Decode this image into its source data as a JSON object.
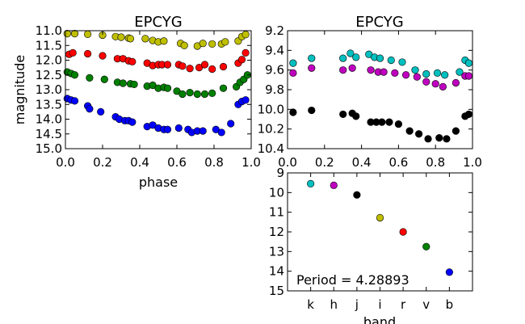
{
  "colors": {
    "b": "#0000ff",
    "v": "#008000",
    "r": "#ff0000",
    "i": "#bfbf00",
    "j": "#000000",
    "h": "#bf00bf",
    "k": "#00bfbf"
  },
  "chart_data": [
    {
      "id": "left",
      "type": "scatter",
      "title": "EPCYG",
      "xlabel": "phase",
      "ylabel": "magnitude",
      "xlim": [
        0.0,
        1.0
      ],
      "ylim": [
        15.0,
        11.0
      ],
      "y_inverted": true,
      "xticks": [
        "0.0",
        "0.2",
        "0.4",
        "0.6",
        "0.8",
        "1.0"
      ],
      "yticks": [
        "11.0",
        "11.5",
        "12.0",
        "12.5",
        "13.0",
        "13.5",
        "14.0",
        "14.5",
        "15.0"
      ],
      "series": [
        {
          "band": "i",
          "color": "#bfbf00",
          "x": [
            0.01,
            0.05,
            0.12,
            0.2,
            0.27,
            0.3,
            0.34,
            0.35,
            0.43,
            0.47,
            0.5,
            0.53,
            0.62,
            0.64,
            0.71,
            0.74,
            0.79,
            0.84,
            0.86,
            0.93,
            0.95,
            0.97
          ],
          "y": [
            11.1,
            11.1,
            11.12,
            11.15,
            11.2,
            11.22,
            11.25,
            11.27,
            11.27,
            11.33,
            11.38,
            11.35,
            11.43,
            11.5,
            11.52,
            11.43,
            11.45,
            11.45,
            11.38,
            11.35,
            11.2,
            11.13
          ]
        },
        {
          "band": "r",
          "color": "#ff0000",
          "x": [
            0.02,
            0.04,
            0.12,
            0.2,
            0.28,
            0.31,
            0.34,
            0.36,
            0.44,
            0.47,
            0.5,
            0.52,
            0.55,
            0.61,
            0.63,
            0.67,
            0.72,
            0.75,
            0.79,
            0.85,
            0.93,
            0.95,
            0.97
          ],
          "y": [
            11.8,
            11.75,
            11.78,
            11.85,
            11.95,
            11.95,
            12.02,
            12.05,
            12.1,
            12.18,
            12.15,
            12.15,
            12.15,
            12.15,
            12.2,
            12.28,
            12.25,
            12.15,
            12.3,
            12.22,
            12.1,
            11.98,
            11.75
          ]
        },
        {
          "band": "v",
          "color": "#008000",
          "x": [
            0.01,
            0.03,
            0.05,
            0.13,
            0.21,
            0.28,
            0.31,
            0.35,
            0.37,
            0.44,
            0.47,
            0.5,
            0.53,
            0.55,
            0.6,
            0.63,
            0.67,
            0.71,
            0.75,
            0.79,
            0.85,
            0.92,
            0.94,
            0.96,
            0.98
          ],
          "y": [
            12.4,
            12.45,
            12.5,
            12.6,
            12.65,
            12.75,
            12.78,
            12.8,
            12.82,
            12.88,
            12.85,
            12.95,
            12.92,
            12.95,
            13.05,
            13.15,
            13.1,
            13.15,
            13.15,
            13.12,
            12.95,
            12.9,
            12.75,
            12.65,
            12.5
          ]
        },
        {
          "band": "b",
          "color": "#0000ff",
          "x": [
            0.01,
            0.03,
            0.05,
            0.12,
            0.13,
            0.19,
            0.27,
            0.29,
            0.32,
            0.34,
            0.36,
            0.44,
            0.47,
            0.5,
            0.53,
            0.55,
            0.61,
            0.66,
            0.68,
            0.71,
            0.74,
            0.81,
            0.84,
            0.89,
            0.93,
            0.95,
            0.97
          ],
          "y": [
            13.3,
            13.35,
            13.38,
            13.55,
            13.65,
            13.75,
            13.92,
            14.0,
            14.05,
            14.05,
            14.1,
            14.25,
            14.2,
            14.3,
            14.35,
            14.35,
            14.3,
            14.35,
            14.45,
            14.4,
            14.4,
            14.35,
            14.45,
            14.15,
            13.5,
            13.4,
            13.35
          ]
        }
      ]
    },
    {
      "id": "right-top",
      "type": "scatter",
      "title": "EPCYG",
      "xlabel": "",
      "ylabel": "",
      "xlim": [
        0.0,
        1.0
      ],
      "ylim": [
        10.4,
        9.2
      ],
      "y_inverted": true,
      "xticks": [
        "0.0",
        "0.2",
        "0.4",
        "0.6",
        "0.8",
        "1.0"
      ],
      "yticks": [
        "9.2",
        "9.4",
        "9.6",
        "9.8",
        "10.0",
        "10.2",
        "10.4"
      ],
      "series": [
        {
          "band": "k",
          "color": "#00bfbf",
          "x": [
            0.03,
            0.13,
            0.3,
            0.34,
            0.37,
            0.44,
            0.47,
            0.5,
            0.56,
            0.62,
            0.69,
            0.75,
            0.81,
            0.85,
            0.93,
            0.96,
            0.98
          ],
          "y": [
            9.53,
            9.48,
            9.48,
            9.43,
            9.47,
            9.44,
            9.47,
            9.48,
            9.5,
            9.52,
            9.6,
            9.64,
            9.63,
            9.65,
            9.62,
            9.5,
            9.53
          ]
        },
        {
          "band": "h",
          "color": "#bf00bf",
          "x": [
            0.03,
            0.13,
            0.3,
            0.35,
            0.45,
            0.49,
            0.52,
            0.58,
            0.64,
            0.7,
            0.75,
            0.8,
            0.84,
            0.91,
            0.96,
            0.98
          ],
          "y": [
            9.63,
            9.58,
            9.6,
            9.58,
            9.6,
            9.62,
            9.62,
            9.63,
            9.65,
            9.67,
            9.72,
            9.74,
            9.77,
            9.73,
            9.66,
            9.66
          ]
        },
        {
          "band": "j",
          "color": "#000000",
          "x": [
            0.03,
            0.13,
            0.3,
            0.35,
            0.37,
            0.45,
            0.48,
            0.51,
            0.55,
            0.6,
            0.66,
            0.71,
            0.76,
            0.82,
            0.86,
            0.91,
            0.96,
            0.98
          ],
          "y": [
            10.03,
            10.01,
            10.05,
            10.04,
            10.07,
            10.13,
            10.13,
            10.13,
            10.13,
            10.15,
            10.22,
            10.25,
            10.3,
            10.29,
            10.3,
            10.22,
            10.07,
            10.05
          ]
        }
      ]
    },
    {
      "id": "right-bottom",
      "type": "scatter",
      "title": "",
      "xlabel": "band",
      "ylabel": "",
      "ylim": [
        15,
        9
      ],
      "y_inverted": true,
      "yticks": [
        "9",
        "10",
        "11",
        "12",
        "13",
        "14",
        "15"
      ],
      "categories": [
        "k",
        "h",
        "j",
        "i",
        "r",
        "v",
        "b"
      ],
      "values": [
        9.55,
        9.63,
        10.12,
        11.28,
        12.0,
        12.75,
        14.05
      ],
      "annotation": "Period = 4.28893"
    }
  ]
}
